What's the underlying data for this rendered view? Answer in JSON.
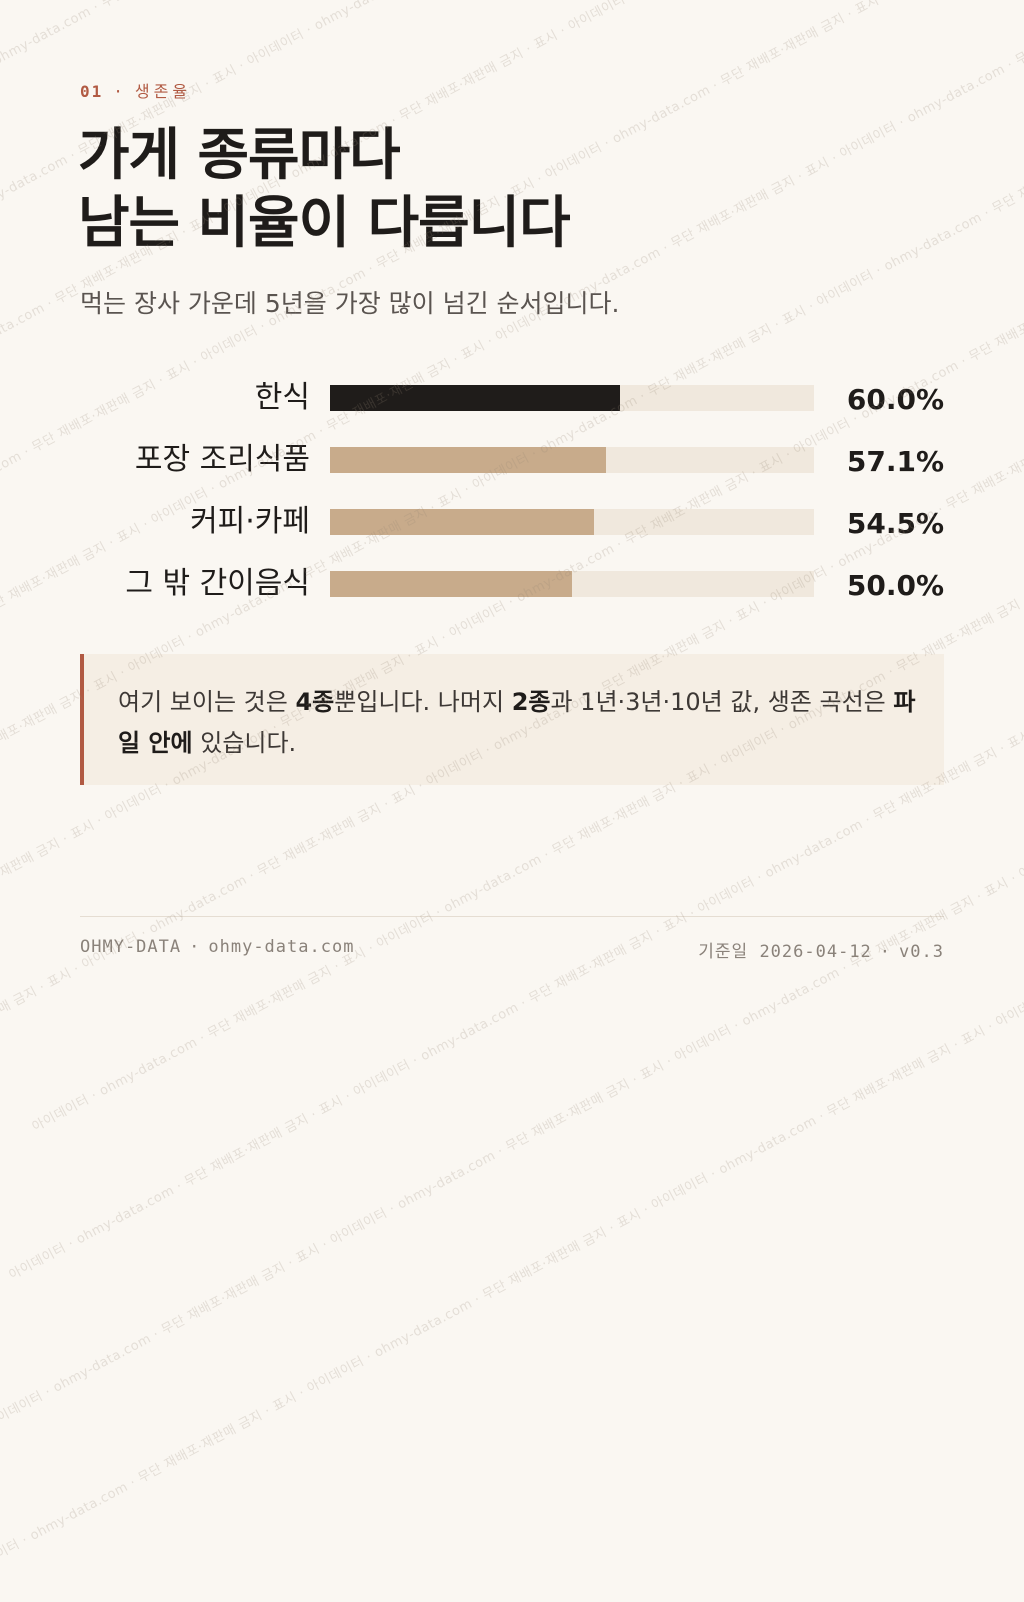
{
  "kicker": {
    "number": "01",
    "separator": "·",
    "label": "생존율"
  },
  "title": {
    "line1": "가게 종류마다",
    "line2": "남는 비율이 다릅니다"
  },
  "subtitle": "먹는 장사 가운데 5년을 가장 많이 넘긴 순서입니다.",
  "chart_data": {
    "type": "bar",
    "orientation": "horizontal",
    "categories": [
      "한식",
      "포장 조리식품",
      "커피·카페",
      "그 밖 간이음식"
    ],
    "values": [
      60.0,
      57.1,
      54.5,
      50.0
    ],
    "value_labels": [
      "60.0%",
      "57.1%",
      "54.5%",
      "50.0%"
    ],
    "xlim": [
      0,
      100
    ],
    "grid": false,
    "colors": {
      "highlight": "#1f1c1a",
      "default": "#c8ab8b",
      "track": "#f0e8dd"
    },
    "highlight_index": 0
  },
  "callout": {
    "text_1": "여기 보이는 것은 ",
    "bold_1": "4종",
    "text_2": "뿐입니다. 나머지 ",
    "bold_2": "2종",
    "text_3": "과 1년·3년·10년 값, 생존 곡선은 ",
    "bold_3": "파일 안에",
    "text_4": " 있습니다.",
    "accent_color": "#b15a43"
  },
  "watermark": "아이데이터 · ohmy-data.com · 무단 재배포·재판매 금지 · 표시",
  "footer": {
    "brand": "OHMY-DATA",
    "separator": "·",
    "site": "ohmy-data.com",
    "date_label": "기준일",
    "date": "2026-04-12",
    "version": "v0.3"
  }
}
